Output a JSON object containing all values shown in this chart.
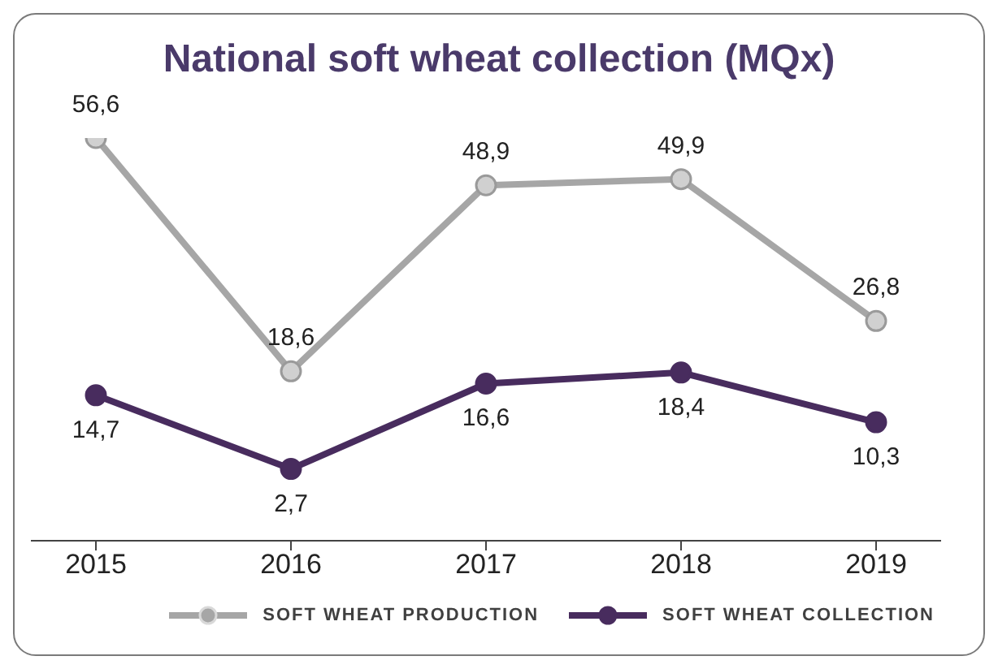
{
  "chart_data": {
    "type": "line",
    "title": "National soft wheat collection (MQx)",
    "categories": [
      "2015",
      "2016",
      "2017",
      "2018",
      "2019"
    ],
    "marker": "circle",
    "legend": "bottom right",
    "grid": false,
    "tick_labels": "x",
    "series": [
      {
        "name": "SOFT WHEAT PRODUCTION",
        "color": "#a6a6a6",
        "values": [
          56.6,
          18.6,
          48.9,
          49.9,
          26.8
        ],
        "value_labels": [
          "56,6",
          "18,6",
          "48,9",
          "49,9",
          "26,8"
        ]
      },
      {
        "name": "SOFT WHEAT COLLECTION",
        "color": "#482c5e",
        "values": [
          14.7,
          2.7,
          16.6,
          18.4,
          10.3
        ],
        "value_labels": [
          "14,7",
          "2,7",
          "16,6",
          "18,4",
          "10,3"
        ]
      }
    ]
  }
}
